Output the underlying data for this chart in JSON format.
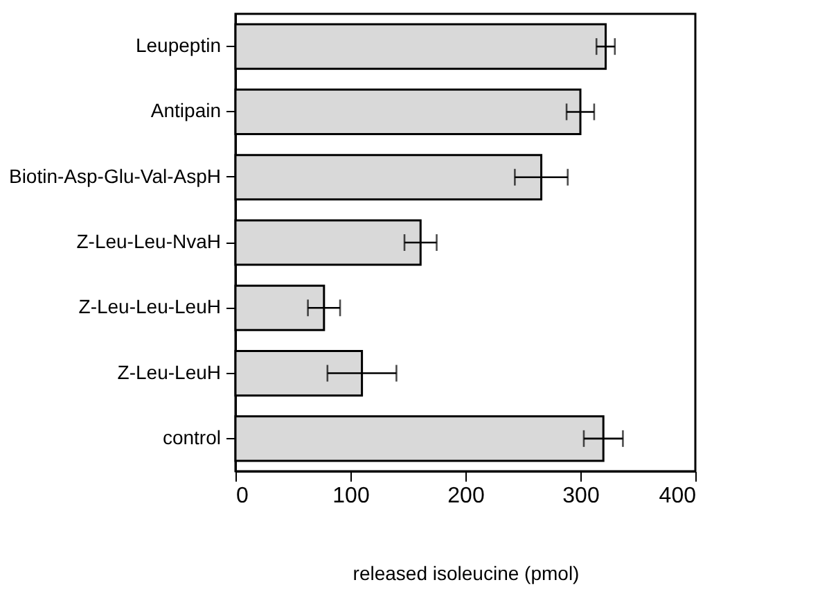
{
  "chart_data": {
    "type": "bar",
    "orientation": "horizontal",
    "xlabel": "released isoleucine (pmol)",
    "categories": [
      "Leupeptin",
      "Antipain",
      "Biotin-Asp-Glu-Val-AspH",
      "Z-Leu-Leu-NvaH",
      "Z-Leu-Leu-LeuH",
      "Z-Leu-LeuH",
      "control"
    ],
    "values": [
      322,
      300,
      266,
      161,
      77,
      110,
      320
    ],
    "errors": [
      8,
      12,
      23,
      14,
      14,
      30,
      17
    ],
    "color": "#d9d9d9",
    "xlim": [
      0,
      400
    ],
    "xticks": [
      0,
      100,
      200,
      300,
      400
    ],
    "grid": false
  }
}
